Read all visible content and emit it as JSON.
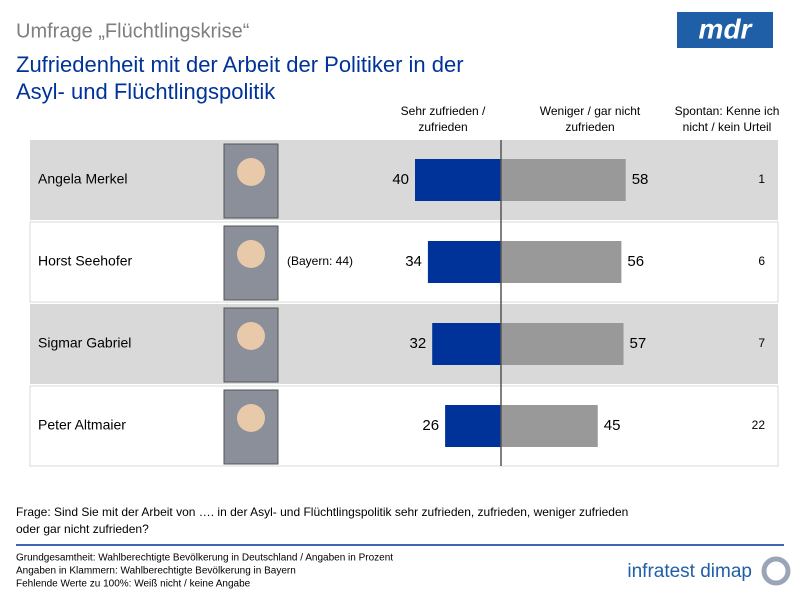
{
  "chart_data": {
    "type": "diverging_bar",
    "header": "Umfrage „Flüchtlingskrise“",
    "title_lines": [
      "Zufriedenheit mit der Arbeit der Politiker in der",
      "Asyl- und Flüchtlingspolitik"
    ],
    "logo": "mdr",
    "categories": [
      "Angela Merkel",
      "Horst Seehofer",
      "Sigmar Gabriel",
      "Peter Altmaier"
    ],
    "annotations": [
      null,
      "(Bayern: 44)",
      null,
      null
    ],
    "series": [
      {
        "name": [
          "Sehr zufrieden /",
          "zufrieden"
        ],
        "color": "#003399",
        "values": [
          40,
          34,
          32,
          26
        ]
      },
      {
        "name": [
          "Weniger / gar nicht",
          "zufrieden"
        ],
        "color": "#999999",
        "values": [
          58,
          56,
          57,
          45
        ]
      },
      {
        "name": [
          "Spontan: Kenne ich",
          "nicht / kein Urteil"
        ],
        "values": [
          1,
          6,
          7,
          22
        ]
      }
    ],
    "question": [
      "Frage: Sind Sie mit der Arbeit von …. in der Asyl- und Flüchtlingspolitik sehr zufrieden, zufrieden, weniger zufrieden",
      "oder gar nicht zufrieden?"
    ],
    "footnotes": [
      "Grundgesamtheit: Wahlberechtigte Bevölkerung in Deutschland / Angaben in Prozent",
      "Angaben in Klammern: Wahlberechtigte Bevölkerung in Bayern",
      "Fehlende Werte zu 100%: Weiß nicht / keine Angabe"
    ],
    "source": "infratest dimap"
  }
}
